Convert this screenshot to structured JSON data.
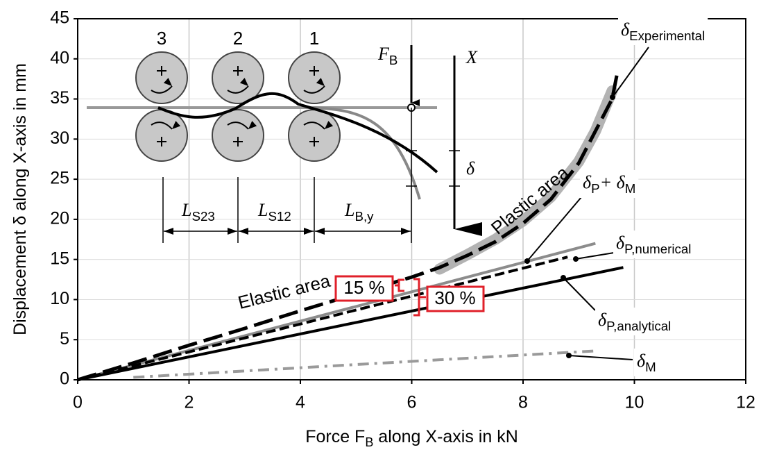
{
  "chart_data": {
    "type": "line",
    "x_label": [
      "Force F",
      "B",
      " along X-axis in kN"
    ],
    "y_label": [
      "Displacement δ along X-axis in mm"
    ],
    "xlim": [
      0,
      12
    ],
    "xticks": [
      0,
      2,
      4,
      6,
      8,
      10,
      12
    ],
    "ylim": [
      0,
      45
    ],
    "yticks": [
      0,
      5,
      10,
      15,
      20,
      25,
      30,
      35,
      40,
      45
    ],
    "grid": true,
    "series": [
      {
        "style": "band",
        "color": "#b3b3b3",
        "x": [
          6.5,
          7,
          7.5,
          8,
          8.5,
          9,
          9.3,
          9.6
        ],
        "values": [
          13.8,
          15.6,
          17.5,
          19.8,
          22.8,
          27.2,
          31,
          36
        ]
      },
      {
        "style": "solid",
        "color": "#8c8c8c",
        "x": [
          0,
          9.3
        ],
        "values": [
          0,
          17
        ]
      },
      {
        "style": "dash-dot",
        "color": "#9a9a9a",
        "x": [
          1,
          5,
          9.3
        ],
        "values": [
          0.3,
          1.9,
          3.6
        ]
      },
      {
        "style": "solid",
        "color": "#000000",
        "x": [
          0,
          9.8
        ],
        "values": [
          0,
          14
        ]
      },
      {
        "style": "dashed",
        "color": "#000000",
        "x": [
          0,
          8.8
        ],
        "values": [
          0,
          15.3
        ]
      },
      {
        "style": "dashed-thick",
        "color": "#000000",
        "x": [
          0,
          1,
          2,
          3,
          4,
          5,
          6,
          6.5,
          7,
          7.5,
          8,
          8.5,
          9,
          9.3,
          9.6,
          9.7
        ],
        "values": [
          0,
          2.1,
          4.3,
          6.4,
          8.6,
          10.7,
          12.8,
          14,
          15.5,
          17.2,
          19.5,
          22.5,
          27,
          31,
          35,
          38.5
        ]
      }
    ],
    "annotations": [
      [
        "δ",
        "Experimental"
      ],
      [
        "δ",
        "P",
        "+ δ",
        "M"
      ],
      [
        "δ",
        "P,numerical"
      ],
      [
        "δ",
        "P,analytical"
      ],
      [
        "δ",
        "M"
      ]
    ],
    "area_labels": [
      "Elastic area",
      "Plastic area"
    ],
    "differences": [
      "15 %",
      "30 %"
    ],
    "inset": {
      "roller_numbers": [
        "3",
        "2",
        "1"
      ],
      "force": [
        "F",
        "B"
      ],
      "axis": [
        "X"
      ],
      "displacement": [
        "δ"
      ],
      "lengths": [
        [
          "L",
          "S23"
        ],
        [
          "L",
          "S12"
        ],
        [
          "L",
          "B,y"
        ]
      ]
    }
  }
}
